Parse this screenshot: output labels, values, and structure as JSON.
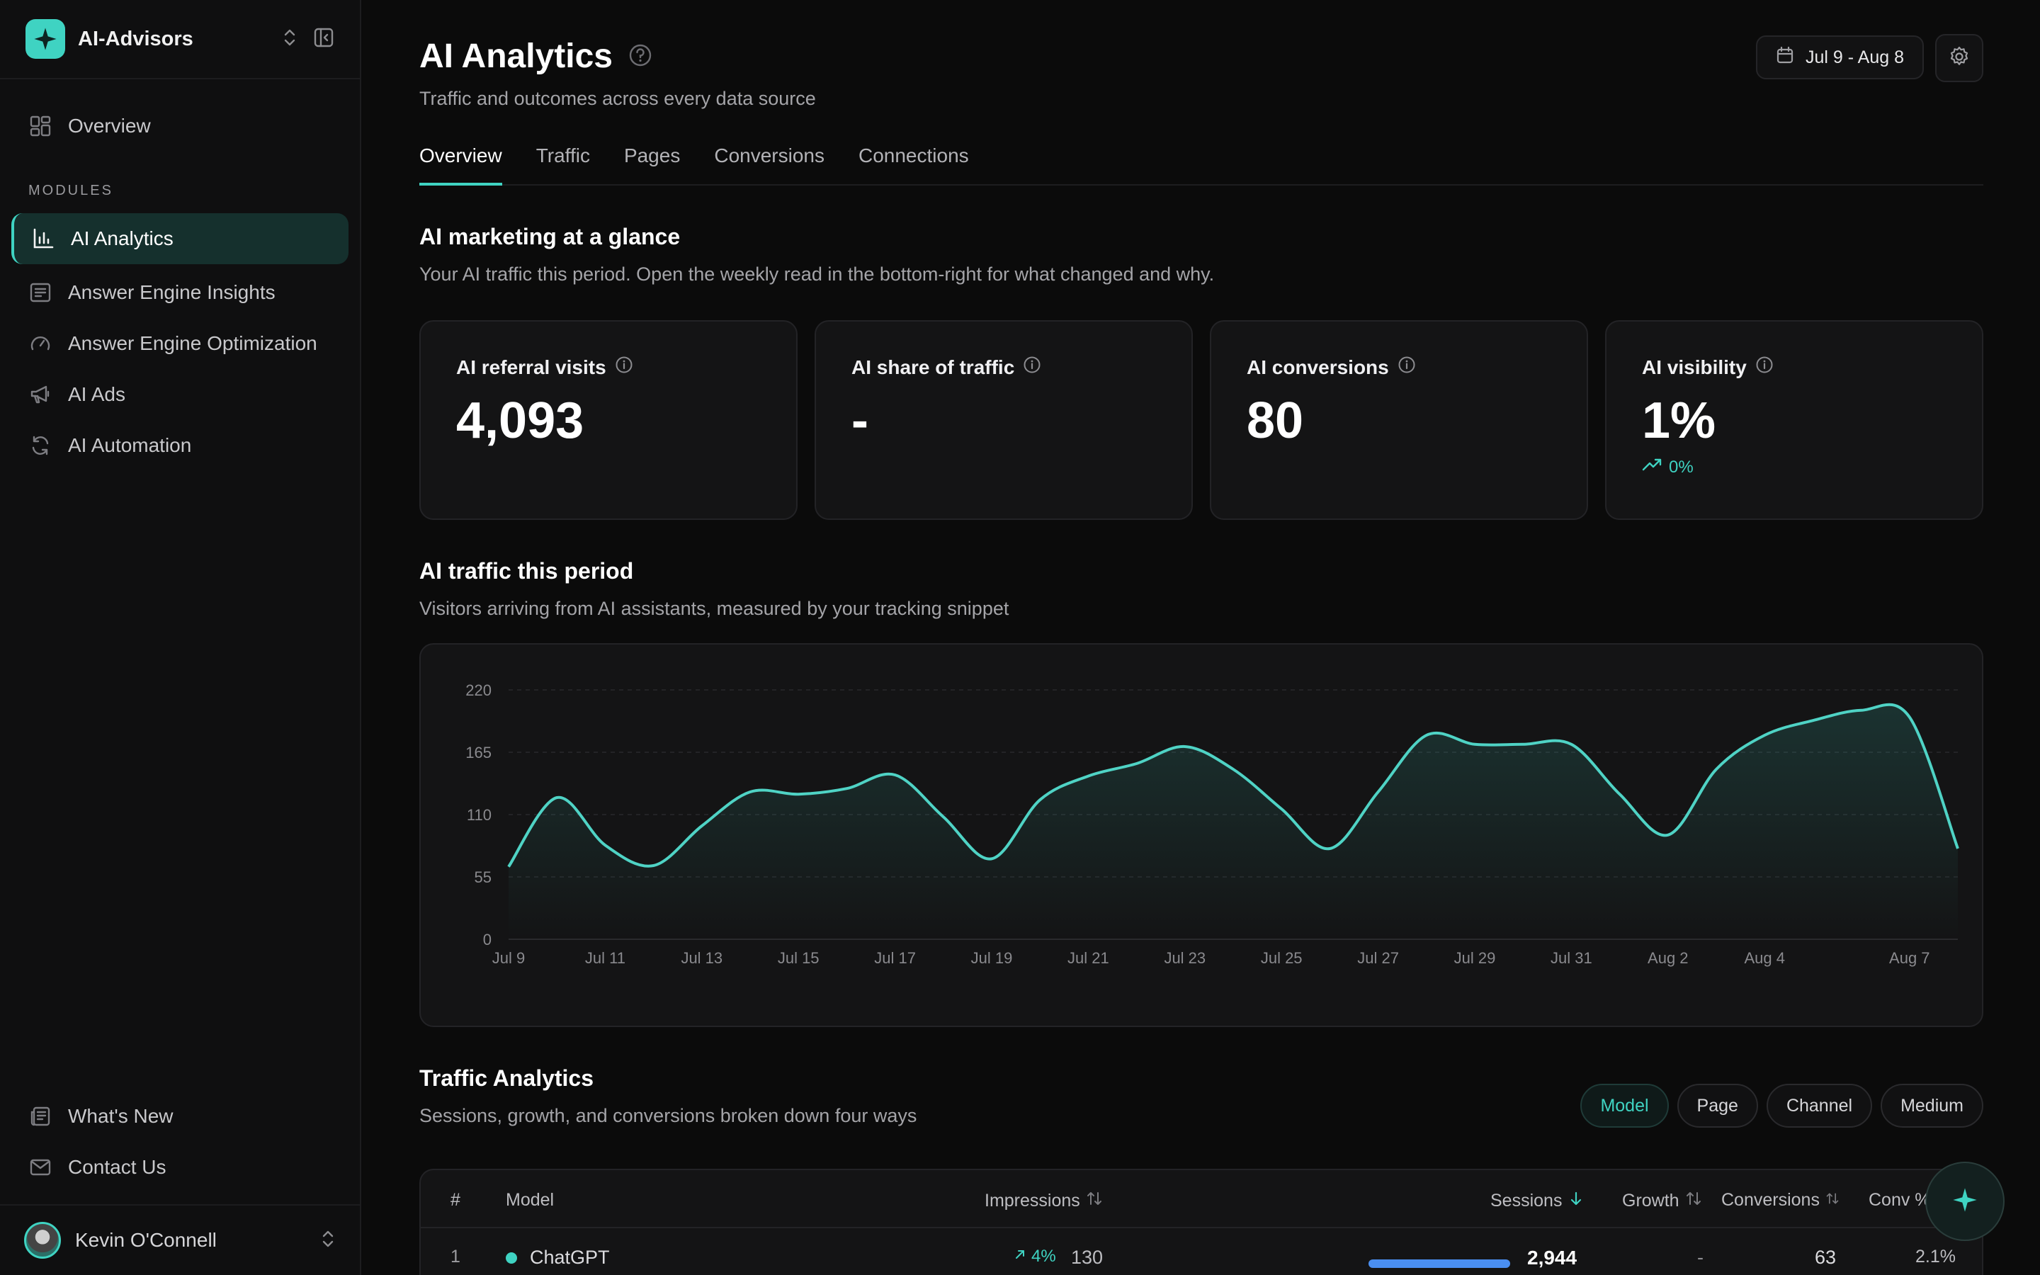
{
  "brand": {
    "name": "AI-Advisors",
    "accent": "#3fd3c2"
  },
  "sidebar": {
    "overview_label": "Overview",
    "section_label": "MODULES",
    "items": [
      {
        "label": "AI Analytics",
        "icon": "bar-chart-icon",
        "active": true
      },
      {
        "label": "Answer Engine Insights",
        "icon": "document-lines-icon"
      },
      {
        "label": "Answer Engine Optimization",
        "icon": "gauge-icon"
      },
      {
        "label": "AI Ads",
        "icon": "megaphone-icon"
      },
      {
        "label": "AI Automation",
        "icon": "refresh-icon"
      }
    ],
    "bottom": [
      {
        "label": "What's New",
        "icon": "newspaper-icon"
      },
      {
        "label": "Contact Us",
        "icon": "mail-icon"
      }
    ],
    "user": {
      "name": "Kevin O'Connell"
    }
  },
  "header": {
    "title": "AI Analytics",
    "subtitle": "Traffic and outcomes across every data source",
    "date_range": "Jul 9 - Aug 8"
  },
  "tabs": [
    "Overview",
    "Traffic",
    "Pages",
    "Conversions",
    "Connections"
  ],
  "glance": {
    "title": "AI marketing at a glance",
    "subtitle": "Your AI traffic this period. Open the weekly read in the bottom-right for what changed and why."
  },
  "kpis": [
    {
      "label": "AI referral visits",
      "value": "4,093"
    },
    {
      "label": "AI share of traffic",
      "value": "-"
    },
    {
      "label": "AI conversions",
      "value": "80"
    },
    {
      "label": "AI visibility",
      "value": "1%",
      "delta": "0%"
    }
  ],
  "traffic_section": {
    "title": "AI traffic this period",
    "subtitle": "Visitors arriving from AI assistants, measured by your tracking snippet"
  },
  "chart_data": {
    "type": "area",
    "ylim": [
      0,
      220
    ],
    "yticks": [
      0,
      55,
      110,
      165,
      220
    ],
    "xtick_labels": [
      "Jul 9",
      "Jul 11",
      "Jul 13",
      "Jul 15",
      "Jul 17",
      "Jul 19",
      "Jul 21",
      "Jul 23",
      "Jul 25",
      "Jul 27",
      "Jul 29",
      "Jul 31",
      "Aug 2",
      "Aug 4",
      "Aug 7"
    ],
    "x": [
      "Jul 9",
      "Jul 10",
      "Jul 11",
      "Jul 12",
      "Jul 13",
      "Jul 14",
      "Jul 15",
      "Jul 16",
      "Jul 17",
      "Jul 18",
      "Jul 19",
      "Jul 20",
      "Jul 21",
      "Jul 22",
      "Jul 23",
      "Jul 24",
      "Jul 25",
      "Jul 26",
      "Jul 27",
      "Jul 28",
      "Jul 29",
      "Jul 30",
      "Jul 31",
      "Aug 1",
      "Aug 2",
      "Aug 3",
      "Aug 4",
      "Aug 5",
      "Aug 6",
      "Aug 7",
      "Aug 8"
    ],
    "series": [
      {
        "values": [
          64,
          125,
          83,
          65,
          100,
          130,
          128,
          133,
          145,
          108,
          71,
          123,
          144,
          155,
          170,
          150,
          115,
          80,
          130,
          180,
          172,
          172,
          172,
          128,
          92,
          150,
          180,
          193,
          202,
          196,
          80
        ]
      }
    ],
    "grid": true,
    "colors": {
      "line": "#4fd3c5"
    }
  },
  "traffic_analytics": {
    "title": "Traffic Analytics",
    "subtitle": "Sessions, growth, and conversions broken down four ways",
    "segments": [
      "Model",
      "Page",
      "Channel",
      "Medium"
    ],
    "active_segment": "Model"
  },
  "table": {
    "columns": [
      "#",
      "Model",
      "Impressions",
      "Sessions",
      "Growth",
      "Conversions",
      "Conv %"
    ],
    "rows": [
      {
        "rank": "1",
        "model": "ChatGPT",
        "impr_delta": "4%",
        "impressions": "130",
        "sessions": "2,944",
        "sessions_share": 1.0,
        "growth": "-",
        "conversions": "63",
        "conv_pct": "2.1%"
      }
    ]
  }
}
